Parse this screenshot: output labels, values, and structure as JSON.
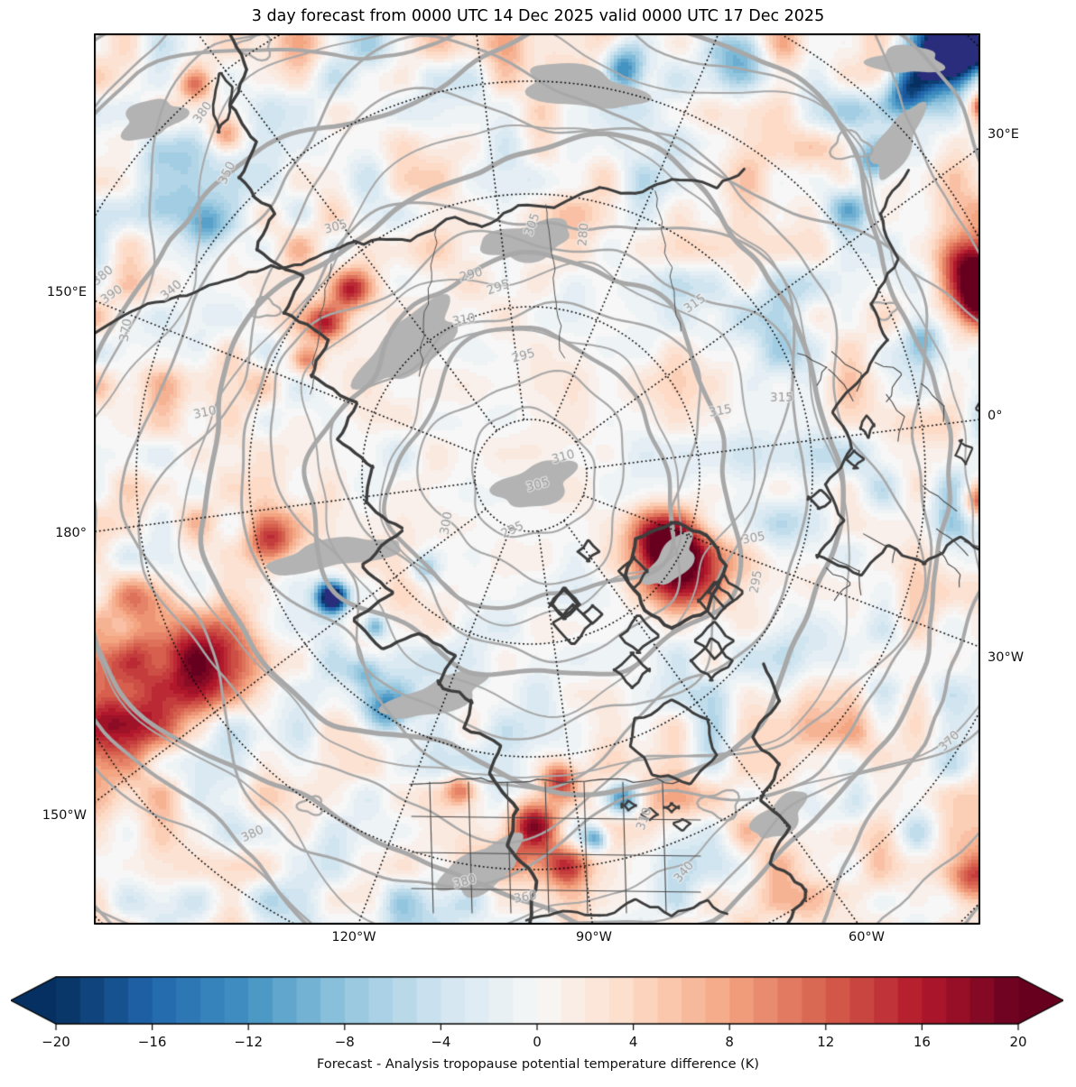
{
  "title": "3 day forecast from 0000 UTC 14 Dec 2025 valid 0000 UTC 17 Dec 2025",
  "axes": {
    "left": [
      "150°E",
      "180°",
      "150°W"
    ],
    "right": [
      "30°E",
      "0°",
      "30°W"
    ],
    "bottom": [
      "120°W",
      "90°W",
      "60°W"
    ]
  },
  "chart_data": {
    "type": "heatmap",
    "title": "3 day forecast from 0000 UTC 14 Dec 2025 valid 0000 UTC 17 Dec 2025",
    "projection": "north polar stereographic",
    "grid": "dotted graticule, meridians every 30 deg, latitude circles every 10 deg",
    "field_label": "Forecast - Analysis tropopause potential temperature difference (K)",
    "colorbar": {
      "label": "Forecast - Analysis tropopause potential temperature difference (K)",
      "ticks": [
        -20,
        -16,
        -12,
        -8,
        -4,
        0,
        4,
        8,
        12,
        16,
        20
      ],
      "vmin": -20,
      "vmax": 20,
      "level_step": 1,
      "extend": "both",
      "cmap": "RdBu_r",
      "cmap_stops": [
        "#053061",
        "#2166ac",
        "#4393c3",
        "#92c5de",
        "#d1e5f0",
        "#f7f7f7",
        "#fddbc7",
        "#f4a582",
        "#d6604d",
        "#b2182b",
        "#67001f"
      ],
      "under_color": "#2a2d7b",
      "over_color": "#67001f"
    },
    "contours": {
      "units": "K",
      "quantity": "tropopause potential temperature",
      "color": "#a8a8a8",
      "labeled_values": [
        280,
        290,
        295,
        300,
        305,
        310,
        315,
        340,
        350,
        360,
        370,
        380,
        390
      ],
      "labels": [
        [
          380,
          121,
          88,
          -55
        ],
        [
          350,
          148,
          155,
          -65
        ],
        [
          305,
          268,
          215,
          -15
        ],
        [
          380,
          10,
          269,
          -40
        ],
        [
          390,
          20,
          290,
          -35
        ],
        [
          340,
          86,
          285,
          -40
        ],
        [
          370,
          36,
          329,
          -80
        ],
        [
          310,
          123,
          421,
          -12
        ],
        [
          290,
          418,
          268,
          -15
        ],
        [
          295,
          448,
          282,
          -20
        ],
        [
          305,
          486,
          212,
          -70
        ],
        [
          280,
          543,
          223,
          -85
        ],
        [
          310,
          410,
          318,
          -10
        ],
        [
          295,
          476,
          358,
          -15
        ],
        [
          315,
          666,
          300,
          -35
        ],
        [
          315,
          694,
          419,
          -10
        ],
        [
          315,
          762,
          404,
          0
        ],
        [
          310,
          520,
          470,
          -15
        ],
        [
          305,
          492,
          501,
          -15
        ],
        [
          300,
          391,
          543,
          -80
        ],
        [
          295,
          464,
          551,
          -25
        ],
        [
          305,
          731,
          560,
          -10
        ],
        [
          295,
          734,
          608,
          -80
        ],
        [
          310,
          610,
          871,
          -70
        ],
        [
          370,
          948,
          785,
          -45
        ],
        [
          380,
          176,
          888,
          -25
        ],
        [
          380,
          411,
          941,
          -15
        ],
        [
          360,
          478,
          958,
          -10
        ],
        [
          340,
          654,
          930,
          -50
        ]
      ]
    },
    "coastlines": "dark gray coastlines with US state and European country borders",
    "legend_position": "horizontal colorbar at bottom"
  }
}
